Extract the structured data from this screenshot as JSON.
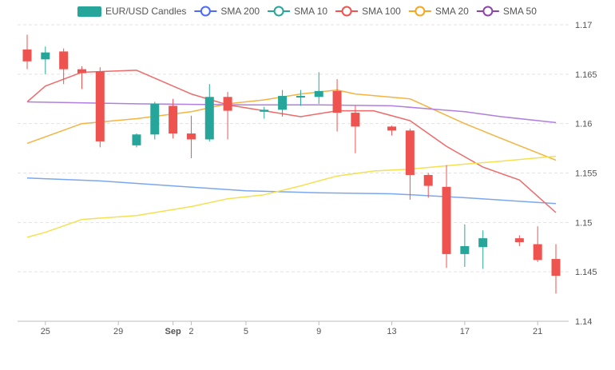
{
  "chart_data": {
    "type": "candlestick",
    "title": "",
    "grid": true,
    "legend_position": "top",
    "ylim": [
      1.14,
      1.17
    ],
    "xlim": [
      24,
      53
    ],
    "y_ticks": [
      "1.17",
      "1.165",
      "1.16",
      "1.155",
      "1.15",
      "1.145",
      "1.14"
    ],
    "y_tick_values": [
      1.17,
      1.165,
      1.16,
      1.155,
      1.15,
      1.145,
      1.14
    ],
    "x_ticks": [
      {
        "x": 25,
        "label": "25",
        "bold": false
      },
      {
        "x": 29,
        "label": "29",
        "bold": false
      },
      {
        "x": 32,
        "label": "Sep",
        "bold": true
      },
      {
        "x": 33,
        "label": "2",
        "bold": false
      },
      {
        "x": 36,
        "label": "5",
        "bold": false
      },
      {
        "x": 40,
        "label": "9",
        "bold": false
      },
      {
        "x": 44,
        "label": "13",
        "bold": false
      },
      {
        "x": 48,
        "label": "17",
        "bold": false
      },
      {
        "x": 52,
        "label": "21",
        "bold": false
      }
    ],
    "colors": {
      "up": "#26a69a",
      "down": "#ef5350",
      "grid": "#e3e3e3"
    },
    "legend": [
      {
        "name": "EUR/USD Candles",
        "color": "#26a69a",
        "kind": "rect"
      },
      {
        "name": "SMA 200",
        "color": "#4b6bff",
        "kind": "line"
      },
      {
        "name": "SMA 10",
        "color": "#26a69a",
        "kind": "line"
      },
      {
        "name": "SMA 100",
        "color": "#ef5350",
        "kind": "line"
      },
      {
        "name": "SMA 20",
        "color": "#f5a623",
        "kind": "line"
      },
      {
        "name": "SMA 50",
        "color": "#8e44ad",
        "kind": "line"
      }
    ],
    "candles": [
      {
        "x": 24,
        "open": 1.1675,
        "high": 1.169,
        "low": 1.1655,
        "close": 1.1663
      },
      {
        "x": 25,
        "open": 1.1665,
        "high": 1.1678,
        "low": 1.165,
        "close": 1.1672
      },
      {
        "x": 26,
        "open": 1.1673,
        "high": 1.1676,
        "low": 1.164,
        "close": 1.1655
      },
      {
        "x": 27,
        "open": 1.1655,
        "high": 1.1658,
        "low": 1.1635,
        "close": 1.1651
      },
      {
        "x": 28,
        "open": 1.1653,
        "high": 1.1657,
        "low": 1.1576,
        "close": 1.1582
      },
      {
        "x": 30,
        "open": 1.1578,
        "high": 1.159,
        "low": 1.1576,
        "close": 1.1589
      },
      {
        "x": 31,
        "open": 1.1589,
        "high": 1.1622,
        "low": 1.1584,
        "close": 1.162
      },
      {
        "x": 32,
        "open": 1.1618,
        "high": 1.1625,
        "low": 1.1585,
        "close": 1.159
      },
      {
        "x": 33,
        "open": 1.159,
        "high": 1.1608,
        "low": 1.1565,
        "close": 1.1584
      },
      {
        "x": 34,
        "open": 1.1584,
        "high": 1.164,
        "low": 1.1582,
        "close": 1.1627
      },
      {
        "x": 35,
        "open": 1.1627,
        "high": 1.1632,
        "low": 1.1584,
        "close": 1.1613
      },
      {
        "x": 37,
        "open": 1.1612,
        "high": 1.1617,
        "low": 1.1605,
        "close": 1.1614
      },
      {
        "x": 38,
        "open": 1.1614,
        "high": 1.1634,
        "low": 1.1607,
        "close": 1.1628
      },
      {
        "x": 39,
        "open": 1.1627,
        "high": 1.1634,
        "low": 1.1618,
        "close": 1.1628
      },
      {
        "x": 40,
        "open": 1.1627,
        "high": 1.1652,
        "low": 1.162,
        "close": 1.1633
      },
      {
        "x": 41,
        "open": 1.1633,
        "high": 1.1645,
        "low": 1.1592,
        "close": 1.1611
      },
      {
        "x": 42,
        "open": 1.1611,
        "high": 1.1618,
        "low": 1.157,
        "close": 1.1597
      },
      {
        "x": 44,
        "open": 1.1597,
        "high": 1.1598,
        "low": 1.1588,
        "close": 1.1593
      },
      {
        "x": 45,
        "open": 1.1593,
        "high": 1.1595,
        "low": 1.1523,
        "close": 1.1548
      },
      {
        "x": 46,
        "open": 1.1548,
        "high": 1.155,
        "low": 1.1525,
        "close": 1.1537
      },
      {
        "x": 47,
        "open": 1.1536,
        "high": 1.1558,
        "low": 1.1454,
        "close": 1.1468
      },
      {
        "x": 48,
        "open": 1.1468,
        "high": 1.1498,
        "low": 1.1455,
        "close": 1.1476
      },
      {
        "x": 49,
        "open": 1.1475,
        "high": 1.1492,
        "low": 1.1453,
        "close": 1.1484
      },
      {
        "x": 51,
        "open": 1.1484,
        "high": 1.1487,
        "low": 1.1476,
        "close": 1.148
      },
      {
        "x": 52,
        "open": 1.1478,
        "high": 1.1496,
        "low": 1.146,
        "close": 1.1462
      },
      {
        "x": 53,
        "open": 1.1463,
        "high": 1.1478,
        "low": 1.1428,
        "close": 1.1446
      }
    ],
    "series": [
      {
        "name": "SMA 200",
        "color": "#7ba7f0",
        "x": [
          24,
          28,
          32,
          36,
          40,
          44,
          48,
          53
        ],
        "values": [
          1.1545,
          1.1542,
          1.1537,
          1.1532,
          1.153,
          1.1529,
          1.1525,
          1.1519
        ]
      },
      {
        "name": "SMA 100",
        "color": "#ef6a6a",
        "x": [
          24,
          25,
          27,
          30,
          33,
          35,
          37,
          39,
          41,
          43,
          45,
          47,
          49,
          51,
          53
        ],
        "values": [
          1.1622,
          1.1638,
          1.1652,
          1.1654,
          1.163,
          1.1619,
          1.1613,
          1.1607,
          1.1613,
          1.1613,
          1.1603,
          1.1577,
          1.1556,
          1.1543,
          1.151
        ]
      },
      {
        "name": "SMA 20",
        "color": "#f5b340",
        "x": [
          24,
          27,
          30,
          33,
          35,
          37,
          39,
          41,
          42,
          45,
          48,
          50,
          53
        ],
        "values": [
          1.158,
          1.16,
          1.1605,
          1.1612,
          1.162,
          1.1624,
          1.163,
          1.1634,
          1.163,
          1.1625,
          1.16,
          1.1585,
          1.1563
        ]
      },
      {
        "name": "SMA 50",
        "color": "#b07fe0",
        "x": [
          24,
          30,
          36,
          40,
          44,
          46,
          48,
          50,
          53
        ],
        "values": [
          1.1622,
          1.162,
          1.1619,
          1.1619,
          1.1618,
          1.1615,
          1.1612,
          1.1607,
          1.1601
        ]
      },
      {
        "name": "SMA 10",
        "color": "#f5e050",
        "x": [
          24,
          25,
          27,
          30,
          33,
          35,
          37,
          39,
          40,
          41,
          43,
          45,
          48,
          50,
          53
        ],
        "values": [
          1.1485,
          1.149,
          1.1503,
          1.1507,
          1.1516,
          1.1524,
          1.1528,
          1.1537,
          1.1542,
          1.1547,
          1.1552,
          1.1554,
          1.1559,
          1.1562,
          1.1567
        ]
      }
    ]
  }
}
